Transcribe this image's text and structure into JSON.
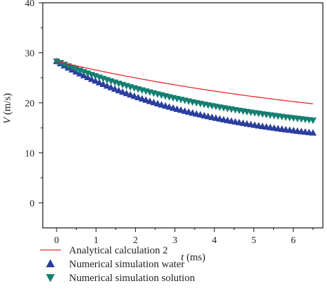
{
  "chart_data": {
    "type": "line",
    "xlabel": {
      "var": "t",
      "unit": " (ms)"
    },
    "ylabel": {
      "var": "V",
      "unit": " (m/s)"
    },
    "xlim": [
      -0.35,
      6.75
    ],
    "ylim": [
      -5,
      40
    ],
    "xticks": [
      0,
      1,
      2,
      3,
      4,
      5,
      6
    ],
    "yticks": [
      0,
      10,
      20,
      30,
      40
    ],
    "legend_position": "bottom",
    "series": [
      {
        "name": "Analytical calculation 2",
        "style": "line",
        "color": "#e8262b",
        "x_start": 0,
        "x_end": 6.5,
        "y_start": 28.3,
        "y_end": 19.8,
        "curvature": 0.25
      },
      {
        "name": "Numerical simulation water",
        "style": "marker-triangle-up",
        "color": "#2a3e9e",
        "x_start": 0,
        "x_end": 6.5,
        "y_start": 28.3,
        "y_end": 14.0,
        "curvature": 0.55
      },
      {
        "name": "Numerical simulation solution",
        "style": "marker-triangle-down",
        "color": "#167f72",
        "x_start": 0,
        "x_end": 6.5,
        "y_start": 28.3,
        "y_end": 16.5,
        "curvature": 0.45
      }
    ]
  }
}
